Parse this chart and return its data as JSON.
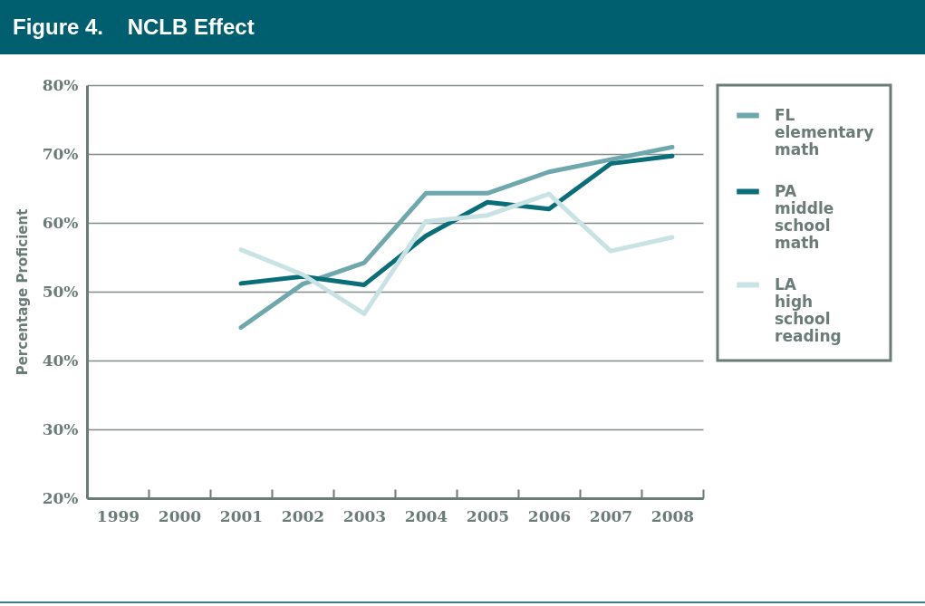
{
  "chart_data": {
    "type": "line",
    "title": "Figure 4.    NCLB Effect",
    "ylabel": "Percentage Proficient",
    "categories": [
      "1999",
      "2000",
      "2001",
      "2002",
      "2003",
      "2004",
      "2005",
      "2006",
      "2007",
      "2008"
    ],
    "series": [
      {
        "name": "FL elementary math",
        "color": "#6fa8ac",
        "values": [
          null,
          null,
          44.8,
          51.1,
          54.2,
          64.3,
          64.3,
          67.4,
          69.2,
          71.0
        ]
      },
      {
        "name": "PA middle school math",
        "color": "#0a6e78",
        "values": [
          null,
          null,
          51.2,
          52.2,
          51.0,
          58.1,
          63.0,
          62.0,
          68.6,
          69.7
        ]
      },
      {
        "name": "LA high school reading",
        "color": "#c9e2e4",
        "values": [
          null,
          null,
          56.1,
          52.5,
          46.8,
          60.2,
          61.1,
          64.2,
          55.9,
          57.9
        ]
      }
    ],
    "ylim": [
      20,
      80
    ],
    "yticks": [
      {
        "value": 20,
        "label": "20%"
      },
      {
        "value": 30,
        "label": "30%"
      },
      {
        "value": 40,
        "label": "40%"
      },
      {
        "value": 50,
        "label": "50%"
      },
      {
        "value": 60,
        "label": "60%"
      },
      {
        "value": 70,
        "label": "70%"
      },
      {
        "value": 80,
        "label": "80%"
      }
    ],
    "grid": "y",
    "legend": "right",
    "marker": "none",
    "line_style": "solid"
  }
}
